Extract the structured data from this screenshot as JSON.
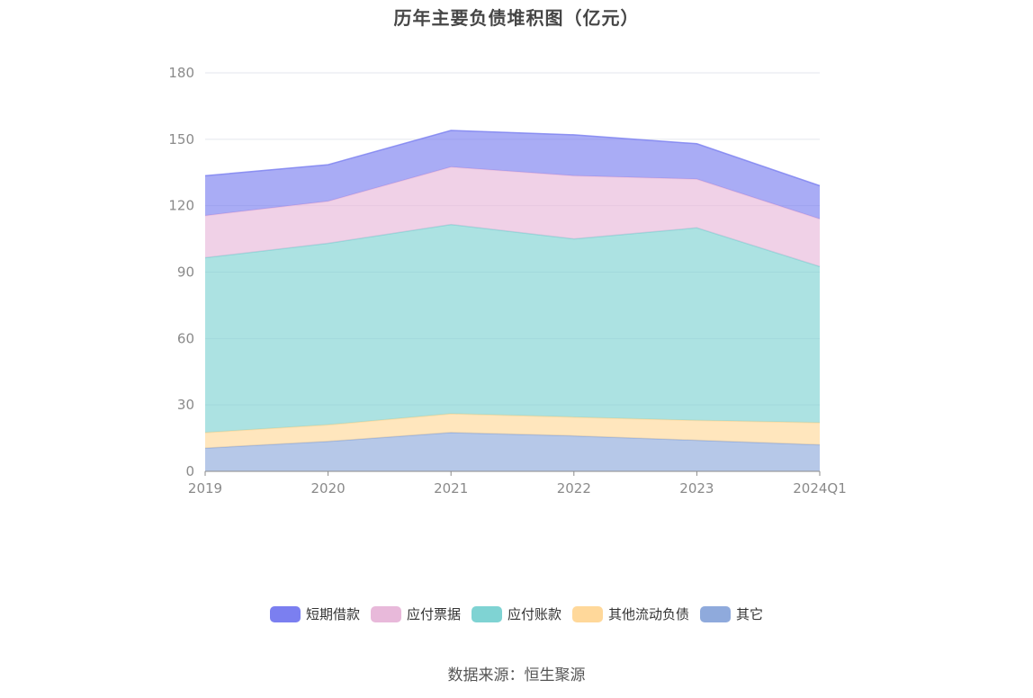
{
  "chart_data": {
    "type": "area",
    "stacked": true,
    "title": "历年主要负债堆积图（亿元）",
    "categories": [
      "2019",
      "2020",
      "2021",
      "2022",
      "2023",
      "2024Q1"
    ],
    "ylim": [
      0,
      180
    ],
    "yticks": [
      "0",
      "30",
      "60",
      "90",
      "120",
      "150",
      "180"
    ],
    "grid": true,
    "legend_position": "bottom",
    "series": [
      {
        "name": "其它",
        "color": "#8faadc",
        "values": [
          10.5,
          13.5,
          17.5,
          16.0,
          14.0,
          12.0
        ]
      },
      {
        "name": "其他流动负债",
        "color": "#ffd89a",
        "values": [
          7.0,
          7.5,
          8.5,
          8.5,
          9.0,
          10.0
        ]
      },
      {
        "name": "应付账款",
        "color": "#7fd3d3",
        "values": [
          79.0,
          82.0,
          85.5,
          80.5,
          87.0,
          70.5
        ]
      },
      {
        "name": "应付票据",
        "color": "#e8b9da",
        "values": [
          19.0,
          19.0,
          26.0,
          28.5,
          22.0,
          21.5
        ]
      },
      {
        "name": "短期借款",
        "color": "#7b7ff0",
        "values": [
          18.0,
          16.5,
          16.5,
          18.5,
          16.0,
          15.0
        ]
      }
    ],
    "legend_order": [
      "短期借款",
      "应付票据",
      "应付账款",
      "其他流动负债",
      "其它"
    ]
  },
  "source": "数据来源：恒生聚源"
}
